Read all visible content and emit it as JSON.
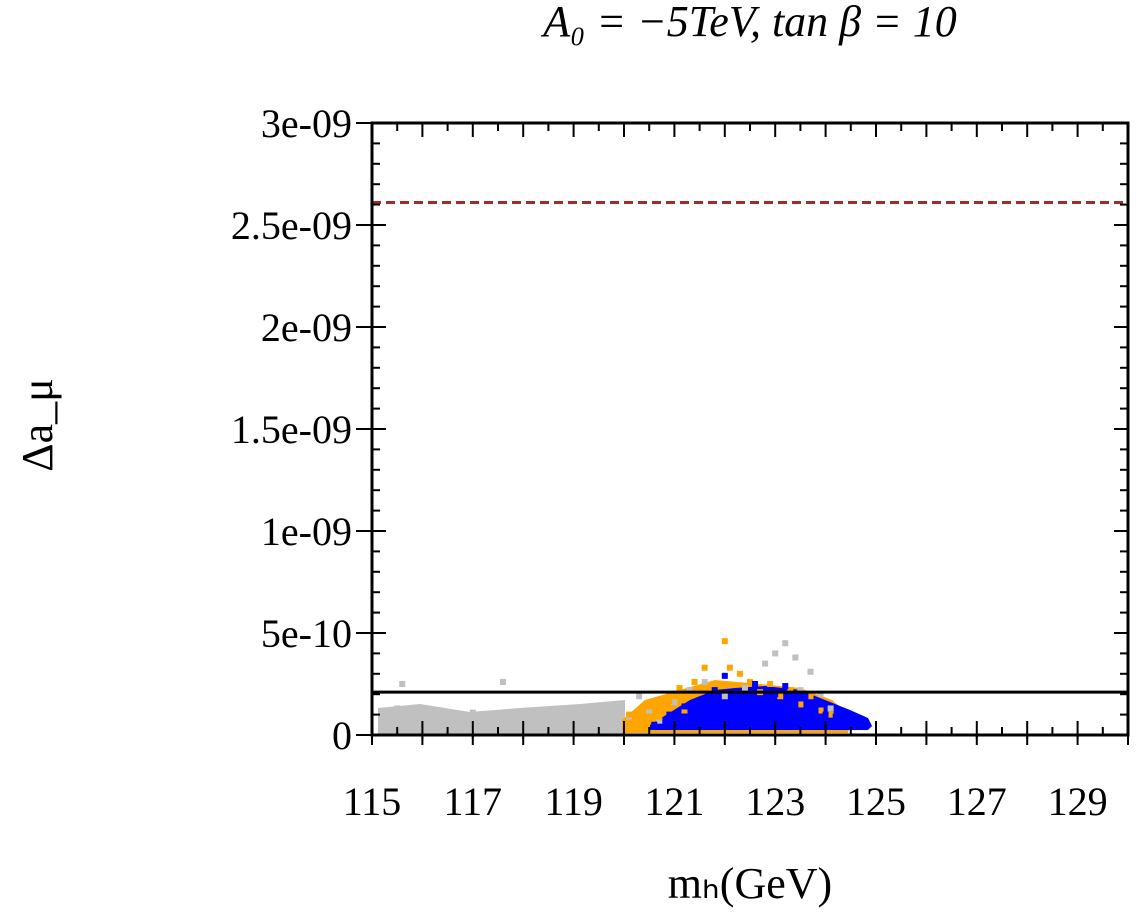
{
  "chart_data": {
    "type": "scatter",
    "title": "A₀ = −5TeV, tan β = 10",
    "xlabel": "mₕ(GeV)",
    "ylabel": "Δa_μ",
    "xlim": [
      115,
      130
    ],
    "ylim": [
      0,
      3e-09
    ],
    "x_ticks": [
      115,
      117,
      119,
      121,
      123,
      125,
      127,
      129
    ],
    "x_tick_labels": [
      "115",
      "117",
      "119",
      "121",
      "123",
      "125",
      "127",
      "129"
    ],
    "y_ticks": [
      0,
      5e-10,
      1e-09,
      1.5e-09,
      2e-09,
      2.5e-09,
      3e-09
    ],
    "y_tick_labels": [
      "0",
      "5e-10",
      "1e-09",
      "1.5e-09",
      "2e-09",
      "2.5e-09",
      "3e-09"
    ],
    "reference_lines": [
      {
        "y": 2.61e-09,
        "style": "dashed",
        "color": "#a52a2a"
      },
      {
        "y": 2.1e-10,
        "style": "solid",
        "color": "#000000"
      }
    ],
    "series": [
      {
        "color": "#c0c0c0",
        "points": [
          [
            115.3,
            9e-11
          ],
          [
            115.5,
            1.3e-10
          ],
          [
            115.6,
            2.5e-10
          ],
          [
            115.8,
            7e-11
          ],
          [
            116.0,
            1.2e-10
          ],
          [
            116.2,
            6e-11
          ],
          [
            116.4,
            1e-10
          ],
          [
            116.6,
            5e-11
          ],
          [
            116.8,
            8e-11
          ],
          [
            117.0,
            1.1e-10
          ],
          [
            117.2,
            6e-11
          ],
          [
            117.4,
            9e-11
          ],
          [
            117.6,
            2.6e-10
          ],
          [
            117.7,
            7e-11
          ],
          [
            117.9,
            1e-10
          ],
          [
            118.1,
            5e-11
          ],
          [
            118.3,
            1.2e-10
          ],
          [
            118.5,
            8e-11
          ],
          [
            118.7,
            6e-11
          ],
          [
            118.9,
            1.3e-10
          ],
          [
            119.1,
            9e-11
          ],
          [
            119.3,
            7e-11
          ],
          [
            119.5,
            1.1e-10
          ],
          [
            119.7,
            5e-11
          ],
          [
            119.9,
            1.5e-10
          ],
          [
            120.1,
            9e-11
          ],
          [
            120.3,
            1.9e-10
          ],
          [
            120.5,
            1.2e-10
          ],
          [
            120.7,
            7e-11
          ],
          [
            121.0,
            1.6e-10
          ],
          [
            121.3,
            2.2e-10
          ],
          [
            121.6,
            2.6e-10
          ],
          [
            122.0,
            1.9e-10
          ],
          [
            122.4,
            2.3e-10
          ],
          [
            122.8,
            3.5e-10
          ],
          [
            123.0,
            4e-10
          ],
          [
            123.2,
            4.5e-10
          ],
          [
            123.4,
            3.8e-10
          ],
          [
            123.5,
            2.2e-10
          ],
          [
            123.7,
            3.1e-10
          ],
          [
            123.9,
            2e-10
          ],
          [
            124.1,
            1.3e-10
          ]
        ]
      },
      {
        "color": "#ffa500",
        "points": [
          [
            120.1,
            1e-10
          ],
          [
            120.3,
            6e-11
          ],
          [
            120.5,
            1.4e-10
          ],
          [
            120.7,
            9e-11
          ],
          [
            120.9,
            1.7e-10
          ],
          [
            121.1,
            2.3e-10
          ],
          [
            121.2,
            1.2e-10
          ],
          [
            121.4,
            2.6e-10
          ],
          [
            121.6,
            3.3e-10
          ],
          [
            121.8,
            2.4e-10
          ],
          [
            122.0,
            4.6e-10
          ],
          [
            122.1,
            3.3e-10
          ],
          [
            122.3,
            3e-10
          ],
          [
            122.5,
            2.6e-10
          ],
          [
            122.7,
            2.1e-10
          ],
          [
            122.9,
            2.5e-10
          ],
          [
            123.1,
            1.9e-10
          ],
          [
            123.3,
            2.2e-10
          ],
          [
            123.5,
            1.5e-10
          ],
          [
            123.7,
            1.9e-10
          ],
          [
            123.9,
            1.2e-10
          ],
          [
            124.1,
            1e-10
          ]
        ]
      },
      {
        "color": "#0000ff",
        "points": [
          [
            120.6,
            5e-11
          ],
          [
            120.9,
            1e-10
          ],
          [
            121.2,
            1.4e-10
          ],
          [
            121.4,
            1.1e-10
          ],
          [
            121.6,
            1.8e-10
          ],
          [
            121.8,
            2.2e-10
          ],
          [
            122.0,
            2.9e-10
          ],
          [
            122.2,
            2e-10
          ],
          [
            122.4,
            1.6e-10
          ],
          [
            122.6,
            2.5e-10
          ],
          [
            122.8,
            1.7e-10
          ],
          [
            123.0,
            2e-10
          ],
          [
            123.2,
            2.4e-10
          ],
          [
            123.4,
            1.5e-10
          ],
          [
            123.6,
            1.9e-10
          ],
          [
            123.8,
            1.2e-10
          ],
          [
            124.0,
            1e-10
          ],
          [
            124.2,
            9e-11
          ],
          [
            124.4,
            7e-11
          ],
          [
            124.6,
            6e-11
          ],
          [
            124.8,
            5e-11
          ]
        ]
      }
    ]
  }
}
